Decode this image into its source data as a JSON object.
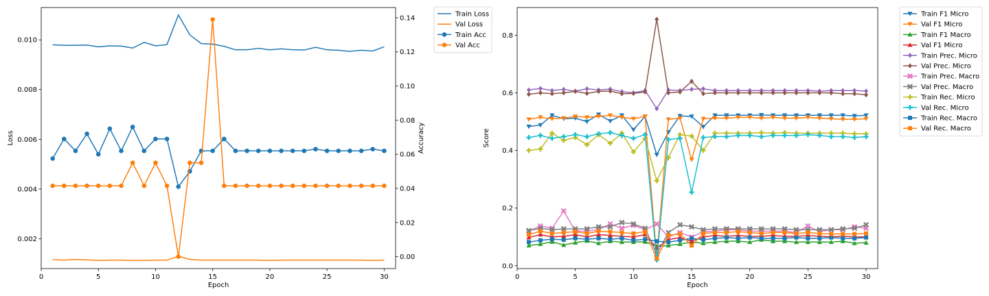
{
  "chart_data": [
    {
      "type": "line",
      "xlabel": "Epoch",
      "ylabel": "Loss",
      "y2label": "Accuracy",
      "xlim": [
        0,
        31
      ],
      "xticks": [
        0,
        5,
        10,
        15,
        20,
        25,
        30
      ],
      "ylim": [
        0.0008,
        0.0113
      ],
      "yticks": [
        0.002,
        0.004,
        0.006,
        0.008,
        0.01
      ],
      "ytick_labels": [
        "0.002",
        "0.004",
        "0.006",
        "0.008",
        "0.010"
      ],
      "y2lim": [
        -0.007,
        0.146
      ],
      "y2ticks": [
        0.0,
        0.02,
        0.04,
        0.06,
        0.08,
        0.1,
        0.12,
        0.14
      ],
      "y2tick_labels": [
        "0.00",
        "0.02",
        "0.04",
        "0.06",
        "0.08",
        "0.10",
        "0.12",
        "0.14"
      ],
      "legend_position": "outside-top-right",
      "grid": false,
      "x": [
        1,
        2,
        3,
        4,
        5,
        6,
        7,
        8,
        9,
        10,
        11,
        12,
        13,
        14,
        15,
        16,
        17,
        18,
        19,
        20,
        21,
        22,
        23,
        24,
        25,
        26,
        27,
        28,
        29,
        30
      ],
      "series": [
        {
          "name": "Train Loss",
          "axis": "left",
          "color": "#1f77b4",
          "marker": "none",
          "values": [
            0.0098,
            0.00978,
            0.00978,
            0.00979,
            0.00972,
            0.00976,
            0.00975,
            0.00967,
            0.0099,
            0.00976,
            0.00981,
            0.011,
            0.0102,
            0.00985,
            0.00983,
            0.00974,
            0.0096,
            0.0096,
            0.00966,
            0.0096,
            0.00964,
            0.0096,
            0.00959,
            0.0097,
            0.0096,
            0.00958,
            0.00954,
            0.00958,
            0.00955,
            0.00972
          ]
        },
        {
          "name": "Val Loss",
          "axis": "left",
          "color": "#ff7f0e",
          "marker": "none",
          "values": [
            0.00116,
            0.00114,
            0.00117,
            0.00115,
            0.00113,
            0.00114,
            0.00114,
            0.00113,
            0.00113,
            0.00114,
            0.00114,
            0.0013,
            0.00117,
            0.00114,
            0.00114,
            0.00114,
            0.00114,
            0.00114,
            0.00114,
            0.00113,
            0.00114,
            0.00114,
            0.00114,
            0.00114,
            0.00114,
            0.00114,
            0.00114,
            0.00114,
            0.00113,
            0.00114
          ]
        },
        {
          "name": "Train Acc",
          "axis": "right",
          "color": "#1f77b4",
          "marker": "circle",
          "values": [
            0.0575,
            0.069,
            0.062,
            0.072,
            0.06,
            0.075,
            0.062,
            0.076,
            0.062,
            0.069,
            0.069,
            0.041,
            0.05,
            0.062,
            0.062,
            0.069,
            0.062,
            0.062,
            0.062,
            0.062,
            0.062,
            0.062,
            0.062,
            0.063,
            0.062,
            0.062,
            0.062,
            0.062,
            0.063,
            0.062
          ]
        },
        {
          "name": "Val Acc",
          "axis": "right",
          "color": "#ff7f0e",
          "marker": "circle",
          "values": [
            0.0415,
            0.0415,
            0.0415,
            0.0415,
            0.0415,
            0.0415,
            0.0415,
            0.055,
            0.0415,
            0.055,
            0.0415,
            0.0,
            0.055,
            0.055,
            0.139,
            0.0415,
            0.0415,
            0.0415,
            0.0415,
            0.0415,
            0.0415,
            0.0415,
            0.0415,
            0.0415,
            0.0415,
            0.0415,
            0.0415,
            0.0415,
            0.0415,
            0.0415
          ]
        }
      ]
    },
    {
      "type": "line",
      "xlabel": "Epoch",
      "ylabel": "Score",
      "xlim": [
        0,
        31
      ],
      "xticks": [
        0,
        5,
        10,
        15,
        20,
        25,
        30
      ],
      "ylim": [
        -0.01,
        0.896
      ],
      "yticks": [
        0.0,
        0.2,
        0.4,
        0.6,
        0.8
      ],
      "ytick_labels": [
        "0.0",
        "0.2",
        "0.4",
        "0.6",
        "0.8"
      ],
      "legend_position": "outside-top-right",
      "grid": false,
      "x": [
        1,
        2,
        3,
        4,
        5,
        6,
        7,
        8,
        9,
        10,
        11,
        12,
        13,
        14,
        15,
        16,
        17,
        18,
        19,
        20,
        21,
        22,
        23,
        24,
        25,
        26,
        27,
        28,
        29,
        30
      ],
      "series": [
        {
          "name": "Train F1 Micro",
          "color": "#1f77b4",
          "marker": "triangle-down",
          "values": [
            0.483,
            0.488,
            0.522,
            0.51,
            0.512,
            0.5,
            0.525,
            0.502,
            0.522,
            0.472,
            0.518,
            0.385,
            0.463,
            0.52,
            0.518,
            0.482,
            0.522,
            0.522,
            0.522,
            0.522,
            0.523,
            0.522,
            0.522,
            0.522,
            0.522,
            0.522,
            0.522,
            0.522,
            0.52,
            0.522
          ]
        },
        {
          "name": "Val F1 Micro",
          "color": "#ff7f0e",
          "marker": "triangle-down",
          "values": [
            0.508,
            0.515,
            0.51,
            0.512,
            0.518,
            0.515,
            0.518,
            0.522,
            0.515,
            0.51,
            0.518,
            0.03,
            0.508,
            0.512,
            0.368,
            0.51,
            0.512,
            0.512,
            0.515,
            0.515,
            0.512,
            0.515,
            0.512,
            0.512,
            0.515,
            0.512,
            0.51,
            0.508,
            0.508,
            0.51
          ]
        },
        {
          "name": "Train F1 Macro",
          "color": "#2ca02c",
          "marker": "triangle-up",
          "values": [
            0.07,
            0.075,
            0.083,
            0.072,
            0.08,
            0.086,
            0.078,
            0.085,
            0.082,
            0.082,
            0.083,
            0.067,
            0.07,
            0.075,
            0.082,
            0.078,
            0.082,
            0.085,
            0.085,
            0.082,
            0.09,
            0.085,
            0.085,
            0.082,
            0.082,
            0.082,
            0.082,
            0.085,
            0.078,
            0.08
          ]
        },
        {
          "name": "Val F1 Micro",
          "color": "#d62728",
          "marker": "triangle-up",
          "values": [
            0.098,
            0.108,
            0.1,
            0.102,
            0.108,
            0.1,
            0.108,
            0.105,
            0.102,
            0.1,
            0.108,
            0.062,
            0.09,
            0.098,
            0.085,
            0.1,
            0.105,
            0.102,
            0.105,
            0.102,
            0.102,
            0.105,
            0.102,
            0.102,
            0.105,
            0.102,
            0.1,
            0.102,
            0.1,
            0.1
          ]
        },
        {
          "name": "Train Prec. Micro",
          "color": "#9467bd",
          "marker": "diamond",
          "values": [
            0.61,
            0.615,
            0.608,
            0.612,
            0.606,
            0.614,
            0.61,
            0.613,
            0.604,
            0.6,
            0.608,
            0.545,
            0.61,
            0.608,
            0.612,
            0.614,
            0.608,
            0.608,
            0.608,
            0.608,
            0.608,
            0.608,
            0.608,
            0.608,
            0.608,
            0.606,
            0.608,
            0.608,
            0.608,
            0.606
          ]
        },
        {
          "name": "Val Prec. Micro",
          "color": "#8c564b",
          "marker": "diamond",
          "values": [
            0.595,
            0.6,
            0.597,
            0.6,
            0.605,
            0.598,
            0.605,
            0.606,
            0.597,
            0.598,
            0.603,
            0.855,
            0.6,
            0.603,
            0.64,
            0.597,
            0.6,
            0.6,
            0.6,
            0.6,
            0.6,
            0.6,
            0.6,
            0.6,
            0.6,
            0.6,
            0.6,
            0.597,
            0.597,
            0.593
          ]
        },
        {
          "name": "Train Prec. Macro",
          "color": "#e377c2",
          "marker": "x",
          "values": [
            0.12,
            0.138,
            0.13,
            0.19,
            0.12,
            0.12,
            0.125,
            0.145,
            0.13,
            0.14,
            0.125,
            0.145,
            0.1,
            0.115,
            0.1,
            0.118,
            0.12,
            0.125,
            0.125,
            0.12,
            0.12,
            0.12,
            0.12,
            0.115,
            0.138,
            0.118,
            0.125,
            0.125,
            0.135,
            0.13
          ]
        },
        {
          "name": "Val Prec. Macro",
          "color": "#7f7f7f",
          "marker": "x",
          "values": [
            0.122,
            0.13,
            0.125,
            0.128,
            0.128,
            0.128,
            0.135,
            0.135,
            0.15,
            0.145,
            0.13,
            0.04,
            0.115,
            0.142,
            0.135,
            0.125,
            0.128,
            0.128,
            0.128,
            0.128,
            0.128,
            0.128,
            0.128,
            0.125,
            0.125,
            0.125,
            0.125,
            0.128,
            0.13,
            0.142
          ]
        },
        {
          "name": "Train Rec. Micro",
          "color": "#bcbd22",
          "marker": "plus",
          "values": [
            0.4,
            0.405,
            0.46,
            0.435,
            0.445,
            0.42,
            0.455,
            0.425,
            0.46,
            0.395,
            0.442,
            0.295,
            0.375,
            0.455,
            0.45,
            0.4,
            0.46,
            0.46,
            0.46,
            0.46,
            0.462,
            0.46,
            0.462,
            0.46,
            0.46,
            0.46,
            0.46,
            0.46,
            0.458,
            0.458
          ]
        },
        {
          "name": "Val Rec. Micro",
          "color": "#17becf",
          "marker": "plus",
          "values": [
            0.445,
            0.452,
            0.442,
            0.448,
            0.455,
            0.448,
            0.458,
            0.462,
            0.452,
            0.442,
            0.455,
            0.02,
            0.438,
            0.442,
            0.255,
            0.445,
            0.448,
            0.448,
            0.452,
            0.452,
            0.448,
            0.452,
            0.452,
            0.452,
            0.455,
            0.452,
            0.448,
            0.448,
            0.445,
            0.448
          ]
        },
        {
          "name": "Train Rec. Macro",
          "color": "#1f77b4",
          "marker": "square",
          "values": [
            0.082,
            0.088,
            0.092,
            0.09,
            0.095,
            0.092,
            0.095,
            0.092,
            0.095,
            0.088,
            0.092,
            0.085,
            0.082,
            0.088,
            0.095,
            0.09,
            0.095,
            0.098,
            0.095,
            0.098,
            0.095,
            0.095,
            0.095,
            0.098,
            0.095,
            0.095,
            0.098,
            0.095,
            0.095,
            0.098
          ]
        },
        {
          "name": "Val Rec. Macro",
          "color": "#ff7f0e",
          "marker": "square",
          "values": [
            0.108,
            0.12,
            0.112,
            0.115,
            0.118,
            0.112,
            0.12,
            0.118,
            0.115,
            0.112,
            0.118,
            0.025,
            0.105,
            0.11,
            0.07,
            0.112,
            0.115,
            0.115,
            0.118,
            0.115,
            0.112,
            0.115,
            0.115,
            0.112,
            0.115,
            0.112,
            0.11,
            0.11,
            0.11,
            0.112
          ]
        }
      ]
    }
  ]
}
